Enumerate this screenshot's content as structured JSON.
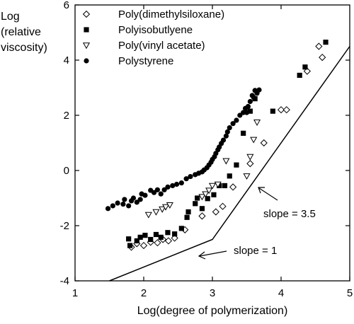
{
  "chart_data": {
    "type": "scatter",
    "xlabel": "Log(degree of polymerization)",
    "ylabel": [
      "Log",
      "(relative",
      "viscosity)"
    ],
    "xlim": [
      1,
      5
    ],
    "ylim": [
      -4,
      6
    ],
    "x_ticks": [
      1,
      2,
      3,
      4,
      5
    ],
    "y_ticks": [
      -4,
      -2,
      0,
      2,
      4,
      6
    ],
    "grid": false,
    "legend_position": "top-left",
    "series": [
      {
        "name": "Poly(dimethylsiloxane)",
        "marker": "diamond-open",
        "points": [
          [
            1.82,
            -2.78
          ],
          [
            1.9,
            -2.65
          ],
          [
            2.0,
            -2.72
          ],
          [
            2.1,
            -2.6
          ],
          [
            2.2,
            -2.62
          ],
          [
            2.28,
            -2.5
          ],
          [
            2.36,
            -2.55
          ],
          [
            2.45,
            -2.45
          ],
          [
            2.6,
            -2.15
          ],
          [
            2.85,
            -1.65
          ],
          [
            3.05,
            -1.5
          ],
          [
            3.15,
            -1.3
          ],
          [
            3.3,
            -0.6
          ],
          [
            3.55,
            0.25
          ],
          [
            3.75,
            1.0
          ],
          [
            4.0,
            2.2
          ],
          [
            4.08,
            2.2
          ],
          [
            4.38,
            3.6
          ],
          [
            4.55,
            4.5
          ],
          [
            4.6,
            4.1
          ]
        ]
      },
      {
        "name": "Polyisobutlyene",
        "marker": "square-filled",
        "points": [
          [
            1.78,
            -2.48
          ],
          [
            1.8,
            -2.72
          ],
          [
            1.9,
            -2.55
          ],
          [
            1.95,
            -2.42
          ],
          [
            2.02,
            -2.35
          ],
          [
            2.1,
            -2.5
          ],
          [
            2.18,
            -2.32
          ],
          [
            2.25,
            -2.42
          ],
          [
            2.35,
            -2.25
          ],
          [
            2.45,
            -2.3
          ],
          [
            2.55,
            -2.1
          ],
          [
            2.63,
            -1.7
          ],
          [
            2.65,
            -1.5
          ],
          [
            2.75,
            -1.2
          ],
          [
            2.78,
            -1.0
          ],
          [
            2.85,
            -1.38
          ],
          [
            2.93,
            -1.02
          ],
          [
            3.02,
            -0.88
          ],
          [
            3.1,
            -0.55
          ],
          [
            3.18,
            -0.55
          ],
          [
            3.25,
            -0.2
          ],
          [
            3.35,
            0.2
          ],
          [
            3.45,
            1.35
          ],
          [
            3.55,
            2.15
          ],
          [
            3.62,
            2.6
          ],
          [
            3.88,
            2.15
          ],
          [
            4.27,
            3.45
          ],
          [
            4.35,
            3.75
          ],
          [
            4.65,
            4.65
          ]
        ]
      },
      {
        "name": "Poly(vinyl acetate)",
        "marker": "triangle-down-open",
        "points": [
          [
            2.07,
            -1.6
          ],
          [
            2.18,
            -1.5
          ],
          [
            2.27,
            -1.4
          ],
          [
            2.32,
            -1.32
          ],
          [
            2.38,
            -1.25
          ],
          [
            2.85,
            -0.95
          ],
          [
            2.9,
            -0.85
          ],
          [
            2.95,
            -0.72
          ],
          [
            3.0,
            -0.55
          ],
          [
            3.08,
            -0.5
          ],
          [
            3.2,
            0.35
          ],
          [
            3.5,
            -0.2
          ],
          [
            3.55,
            0.5
          ],
          [
            3.6,
            1.12
          ],
          [
            3.65,
            1.75
          ]
        ]
      },
      {
        "name": "Polystyrene",
        "marker": "circle-filled",
        "points": [
          [
            1.48,
            -1.38
          ],
          [
            1.55,
            -1.28
          ],
          [
            1.62,
            -1.18
          ],
          [
            1.7,
            -1.22
          ],
          [
            1.72,
            -1.05
          ],
          [
            1.78,
            -1.28
          ],
          [
            1.82,
            -1.1
          ],
          [
            1.85,
            -1.0
          ],
          [
            1.9,
            -1.15
          ],
          [
            1.95,
            -1.05
          ],
          [
            1.97,
            -0.85
          ],
          [
            2.02,
            -0.9
          ],
          [
            2.1,
            -0.72
          ],
          [
            2.15,
            -0.8
          ],
          [
            2.2,
            -0.7
          ],
          [
            2.25,
            -0.85
          ],
          [
            2.3,
            -0.7
          ],
          [
            2.35,
            -0.6
          ],
          [
            2.42,
            -0.55
          ],
          [
            2.48,
            -0.5
          ],
          [
            2.55,
            -0.45
          ],
          [
            2.62,
            -0.3
          ],
          [
            2.68,
            -0.22
          ],
          [
            2.75,
            -0.15
          ],
          [
            2.8,
            -0.1
          ],
          [
            2.85,
            -0.05
          ],
          [
            2.88,
            0.02
          ],
          [
            2.92,
            0.1
          ],
          [
            2.95,
            0.2
          ],
          [
            2.98,
            0.3
          ],
          [
            3.0,
            0.4
          ],
          [
            3.03,
            0.5
          ],
          [
            3.05,
            0.62
          ],
          [
            3.08,
            0.75
          ],
          [
            3.1,
            0.85
          ],
          [
            3.13,
            0.98
          ],
          [
            3.16,
            1.1
          ],
          [
            3.2,
            1.25
          ],
          [
            3.22,
            1.4
          ],
          [
            3.25,
            1.55
          ],
          [
            3.3,
            1.7
          ],
          [
            3.35,
            1.82
          ],
          [
            3.4,
            2.0
          ],
          [
            3.45,
            2.1
          ],
          [
            3.48,
            2.25
          ],
          [
            3.52,
            2.32
          ],
          [
            3.55,
            2.5
          ],
          [
            3.6,
            2.65
          ],
          [
            3.65,
            2.8
          ],
          [
            3.68,
            2.92
          ],
          [
            3.5,
            2.1
          ],
          [
            3.58,
            2.72
          ],
          [
            3.62,
            2.9
          ]
        ]
      }
    ],
    "reference_line": {
      "points": [
        [
          1.5,
          -4.0
        ],
        [
          3.0,
          -2.5
        ],
        [
          5.0,
          4.5
        ]
      ]
    },
    "annotations": [
      {
        "text": "slope = 3.5",
        "arrow_to": [
          3.65,
          -1.25
        ]
      },
      {
        "text": "slope = 1",
        "arrow_to": [
          2.75,
          -3.05
        ]
      }
    ]
  }
}
